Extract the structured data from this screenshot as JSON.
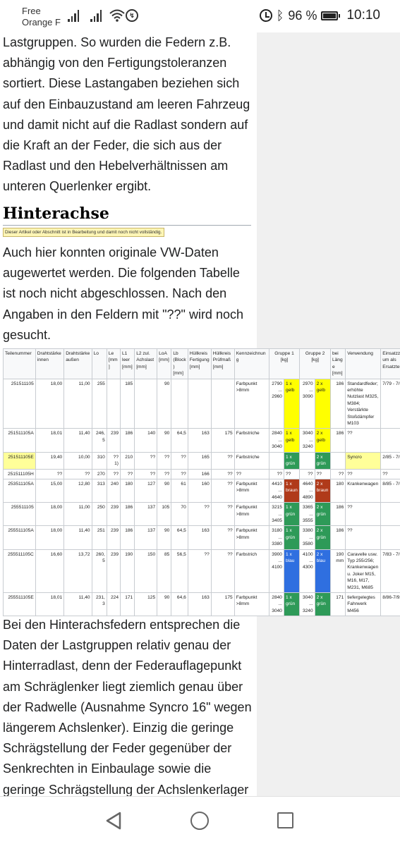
{
  "status_bar": {
    "carrier_line1": "Free",
    "carrier_line2": "Orange F",
    "battery": "96 %",
    "time": "10:10"
  },
  "article": {
    "paragraph_top": "Lastgruppen. So wurden die Federn z.B. abhängig von den Fertigungstoleranzen sortiert. Diese Lastangaben beziehen sich auf den Einbauzustand am leeren Fahrzeug und damit nicht auf die Radlast sondern auf die Kraft an der Feder, die sich aus der Radlast und den Hebelverhältnissen am unteren Querlenker ergibt.",
    "heading": "Hinterachse",
    "notice": "Dieser Artikel oder Abschnitt ist in Bearbeitung und damit noch nicht vollständig.",
    "paragraph_intro": "Auch hier konnten originale VW-Daten augewertet werden. Die folgenden Tabelle ist noch nicht abgeschlossen. Nach den Angaben in den Feldern mit \"??\" wird noch gesucht.",
    "paragraph_bottom": "Bei den Hinterachsfedern entsprechen die Daten der Lastgruppen relativ genau der Hinterradlast, denn der Federauflagepunkt am Schräglenker liegt ziemlich genau über der Radwelle (Ausnahme Syncro 16\" wegen längerem Achslenker). Einzig die geringe Schrägstellung der Feder gegenüber der Senkrechten in Einbaulage sowie die geringe Schrägstellung der Achslenkerlager"
  },
  "table": {
    "headers": [
      "Teilenummer",
      "Drahtstärke innen",
      "Drahtstärke außen",
      "Lo",
      "Le [mm]",
      "L1 leer [mm]",
      "L2 zul. Achslast [mm]",
      "LoA [mm]",
      "Lb (Block) [mm]",
      "Hüllkreis Fertigung [mm]",
      "Hüllkreis Prüfmaß [mm]",
      "Kennzeichnung",
      "Gruppe 1 [kg]",
      "Gruppe 2 [kg]",
      "bei Länge [mm]",
      "Verwendung",
      "Einsatzzeitraum als Ersatzteil"
    ],
    "rows": [
      {
        "part": "251511105",
        "di": "18,00",
        "da": "11,00",
        "lo": "255",
        "le": "",
        "l1": "185",
        "l2": "",
        "loa": "90",
        "lb": "",
        "hf": "",
        "hp": "",
        "mark": "Farbpunkt >8mm",
        "g1v": "2790 ... 2960",
        "g1c": "1 x gelb",
        "g1k": "yellow",
        "g2v": "2970 ... 3090",
        "g2c": "2 x gelb",
        "g2k": "yellow",
        "len": "186",
        "use": "Standardfeder; erhöhte Nutzlast M325, M384; Verstärkte Stoßdämpfer M103",
        "period": "7/79 - 7/92"
      },
      {
        "part": "251511105A",
        "di": "18,01",
        "da": "11,40",
        "lo": "246,5",
        "le": "239",
        "l1": "186",
        "l2": "140",
        "loa": "90",
        "lb": "64,5",
        "hf": "163",
        "hp": "175",
        "mark": "Farbstriche",
        "g1v": "2840 ... 3040",
        "g1c": "1 x gelb",
        "g1k": "yellow",
        "g2v": "3040 ... 3240",
        "g2c": "2 x gelb",
        "g2k": "yellow",
        "len": "186",
        "use": "??",
        "period": ""
      },
      {
        "part": "251511105E",
        "di": "19,40",
        "da": "10,00",
        "lo": "310",
        "le": "?? 1)",
        "l1": "210",
        "l2": "??",
        "loa": "??",
        "lb": "??",
        "hf": "165",
        "hp": "??",
        "mark": "Farbstriche",
        "g1v": "",
        "g1c": "1 x grün",
        "g1k": "green",
        "g2v": "",
        "g2c": "2 x grün",
        "g2k": "green",
        "len": "",
        "use": "Syncro",
        "period": "2/85 - 7/92",
        "hl": true
      },
      {
        "part": "251511105H",
        "di": "??",
        "da": "??",
        "lo": "270",
        "le": "??",
        "l1": "??",
        "l2": "??",
        "loa": "??",
        "lb": "??",
        "hf": "166",
        "hp": "??",
        "mark": "??",
        "g1v": "??",
        "g1c": "??",
        "g1k": "",
        "g2v": "??",
        "g2c": "??",
        "g2k": "",
        "len": "??",
        "use": "??",
        "period": "??"
      },
      {
        "part": "253511105A",
        "di": "15,00",
        "da": "12,80",
        "lo": "313",
        "le": "240",
        "l1": "180",
        "l2": "127",
        "loa": "90",
        "lb": "61",
        "hf": "160",
        "hp": "??",
        "mark": "Farbpunkt >8mm",
        "g1v": "4410 ... 4640",
        "g1c": "1 x braun",
        "g1k": "red",
        "g2v": "4640 ... 4890",
        "g2c": "2 x braun",
        "g2k": "red",
        "len": "180",
        "use": "Krankenwagen",
        "period": "8/85 - 7/92"
      },
      {
        "part": "255511105",
        "di": "18,00",
        "da": "11,00",
        "lo": "250",
        "le": "239",
        "l1": "186",
        "l2": "137",
        "loa": "105",
        "lb": "70",
        "hf": "??",
        "hp": "??",
        "mark": "Farbpunkt >8mm",
        "g1v": "3215 ... 3405",
        "g1c": "1 x grün",
        "g1k": "green",
        "g2v": "3365 ... 3555",
        "g2c": "2 x grün",
        "g2k": "green",
        "len": "186",
        "use": "??",
        "period": ""
      },
      {
        "part": "255511105A",
        "di": "18,00",
        "da": "11,40",
        "lo": "251",
        "le": "239",
        "l1": "186",
        "l2": "137",
        "loa": "90",
        "lb": "64,5",
        "hf": "163",
        "hp": "??",
        "mark": "Farbpunkt >8mm",
        "g1v": "3180 ... 3380",
        "g1c": "1 x grün",
        "g1k": "green",
        "g2v": "3380 ... 3580",
        "g2c": "2 x grün",
        "g2k": "green",
        "len": "186",
        "use": "??",
        "period": ""
      },
      {
        "part": "255511105C",
        "di": "16,60",
        "da": "13,72",
        "lo": "260,5",
        "le": "239",
        "l1": "190",
        "l2": "150",
        "loa": "85",
        "lb": "56,5",
        "hf": "??",
        "hp": "??",
        "mark": "Farbstrich",
        "g1v": "3900 ... 4100",
        "g1c": "1 x blau",
        "g1k": "blue",
        "g2v": "4100 ... 4300",
        "g2c": "2 x blau",
        "g2k": "blue",
        "len": "190 mm",
        "use": "Caravelle usw. Typ 255/256; Krankenwagen u. Joker M15, M16, M17, M231, M685",
        "period": "7/83 - 7/92"
      },
      {
        "part": "255511105E",
        "di": "18,01",
        "da": "11,40",
        "lo": "231,3",
        "le": "224",
        "l1": "171",
        "l2": "125",
        "loa": "90",
        "lb": "64,6",
        "hf": "163",
        "hp": "175",
        "mark": "Farbpunkt >8mm",
        "g1v": "2840 ... 3040",
        "g1c": "1 x grün",
        "g1k": "green",
        "g2v": "3040 ... 3240",
        "g2c": "2 x grün",
        "g2k": "green",
        "len": "171",
        "use": "tiefergelegtes Fahrwerk M456",
        "period": "8/86-7/92"
      }
    ]
  },
  "nav_bar": {
    "back": "back-icon",
    "home": "home-icon",
    "recents": "recents-icon"
  }
}
